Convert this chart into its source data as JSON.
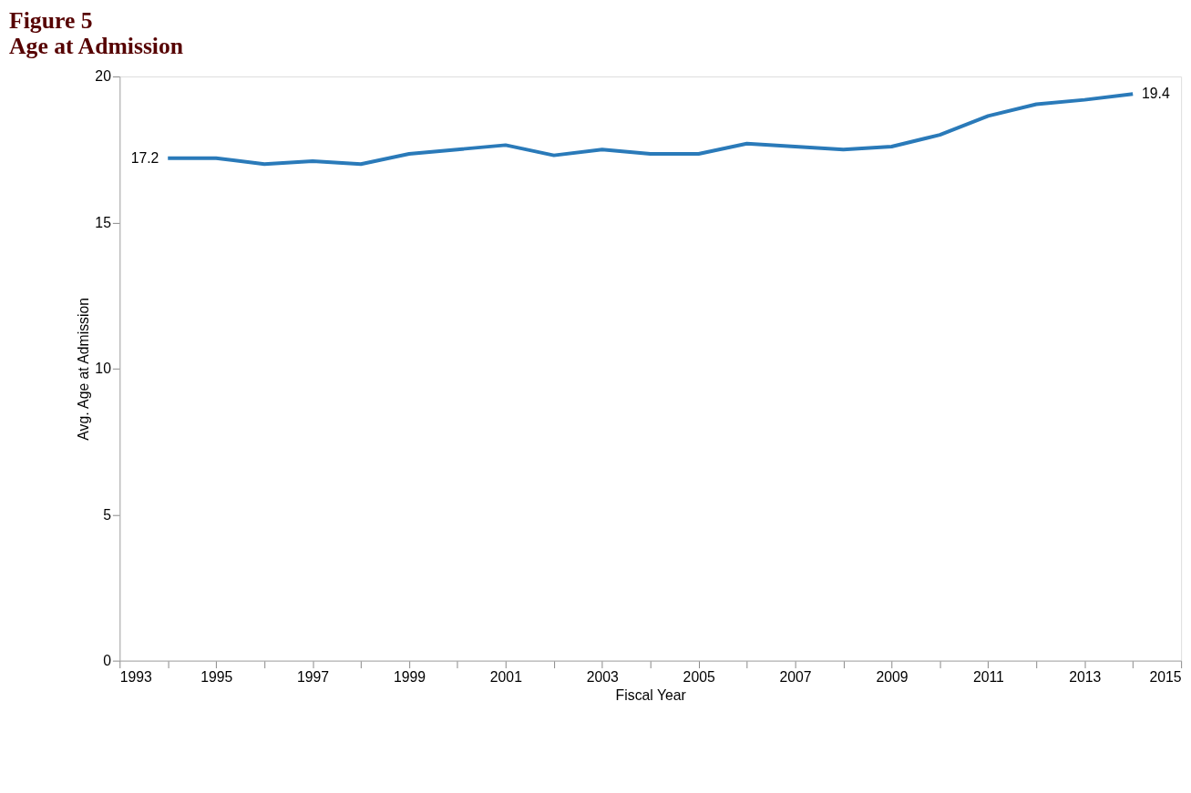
{
  "chart_data": {
    "type": "line",
    "title": "Figure 5",
    "subtitle": "Age at Admission",
    "xlabel": "Fiscal Year",
    "ylabel": "Avg. Age at Admission",
    "x": [
      1994,
      1995,
      1996,
      1997,
      1998,
      1999,
      2000,
      2001,
      2002,
      2003,
      2004,
      2005,
      2006,
      2007,
      2008,
      2009,
      2010,
      2011,
      2012,
      2013,
      2014
    ],
    "series": [
      {
        "color": "#2a7ab9",
        "values": [
          17.2,
          17.2,
          17.0,
          17.1,
          17.0,
          17.35,
          17.5,
          17.65,
          17.3,
          17.5,
          17.35,
          17.35,
          17.7,
          17.6,
          17.5,
          17.6,
          18.0,
          18.65,
          19.05,
          19.2,
          19.4
        ],
        "value_labels": [
          "17.2",
          null,
          null,
          null,
          null,
          null,
          null,
          null,
          null,
          null,
          null,
          null,
          null,
          null,
          null,
          null,
          null,
          null,
          null,
          null,
          "19.4"
        ]
      }
    ],
    "xlim": [
      1993,
      2015
    ],
    "xticks": [
      1993,
      {
        "value": 1994,
        "label": null
      },
      1995,
      {
        "value": 1996,
        "label": null
      },
      1997,
      {
        "value": 1998,
        "label": null
      },
      1999,
      {
        "value": 2000,
        "label": null
      },
      2001,
      {
        "value": 2002,
        "label": null
      },
      2003,
      {
        "value": 2004,
        "label": null
      },
      2005,
      {
        "value": 2006,
        "label": null
      },
      2007,
      {
        "value": 2008,
        "label": null
      },
      2009,
      {
        "value": 2010,
        "label": null
      },
      2011,
      {
        "value": 2012,
        "label": null
      },
      2013,
      {
        "value": 2014,
        "label": null
      },
      2015
    ],
    "ylim": [
      0,
      20
    ],
    "yticks": [
      0,
      5,
      10,
      15,
      20
    ],
    "grid": false,
    "marker": "none",
    "line_style": "solid"
  }
}
